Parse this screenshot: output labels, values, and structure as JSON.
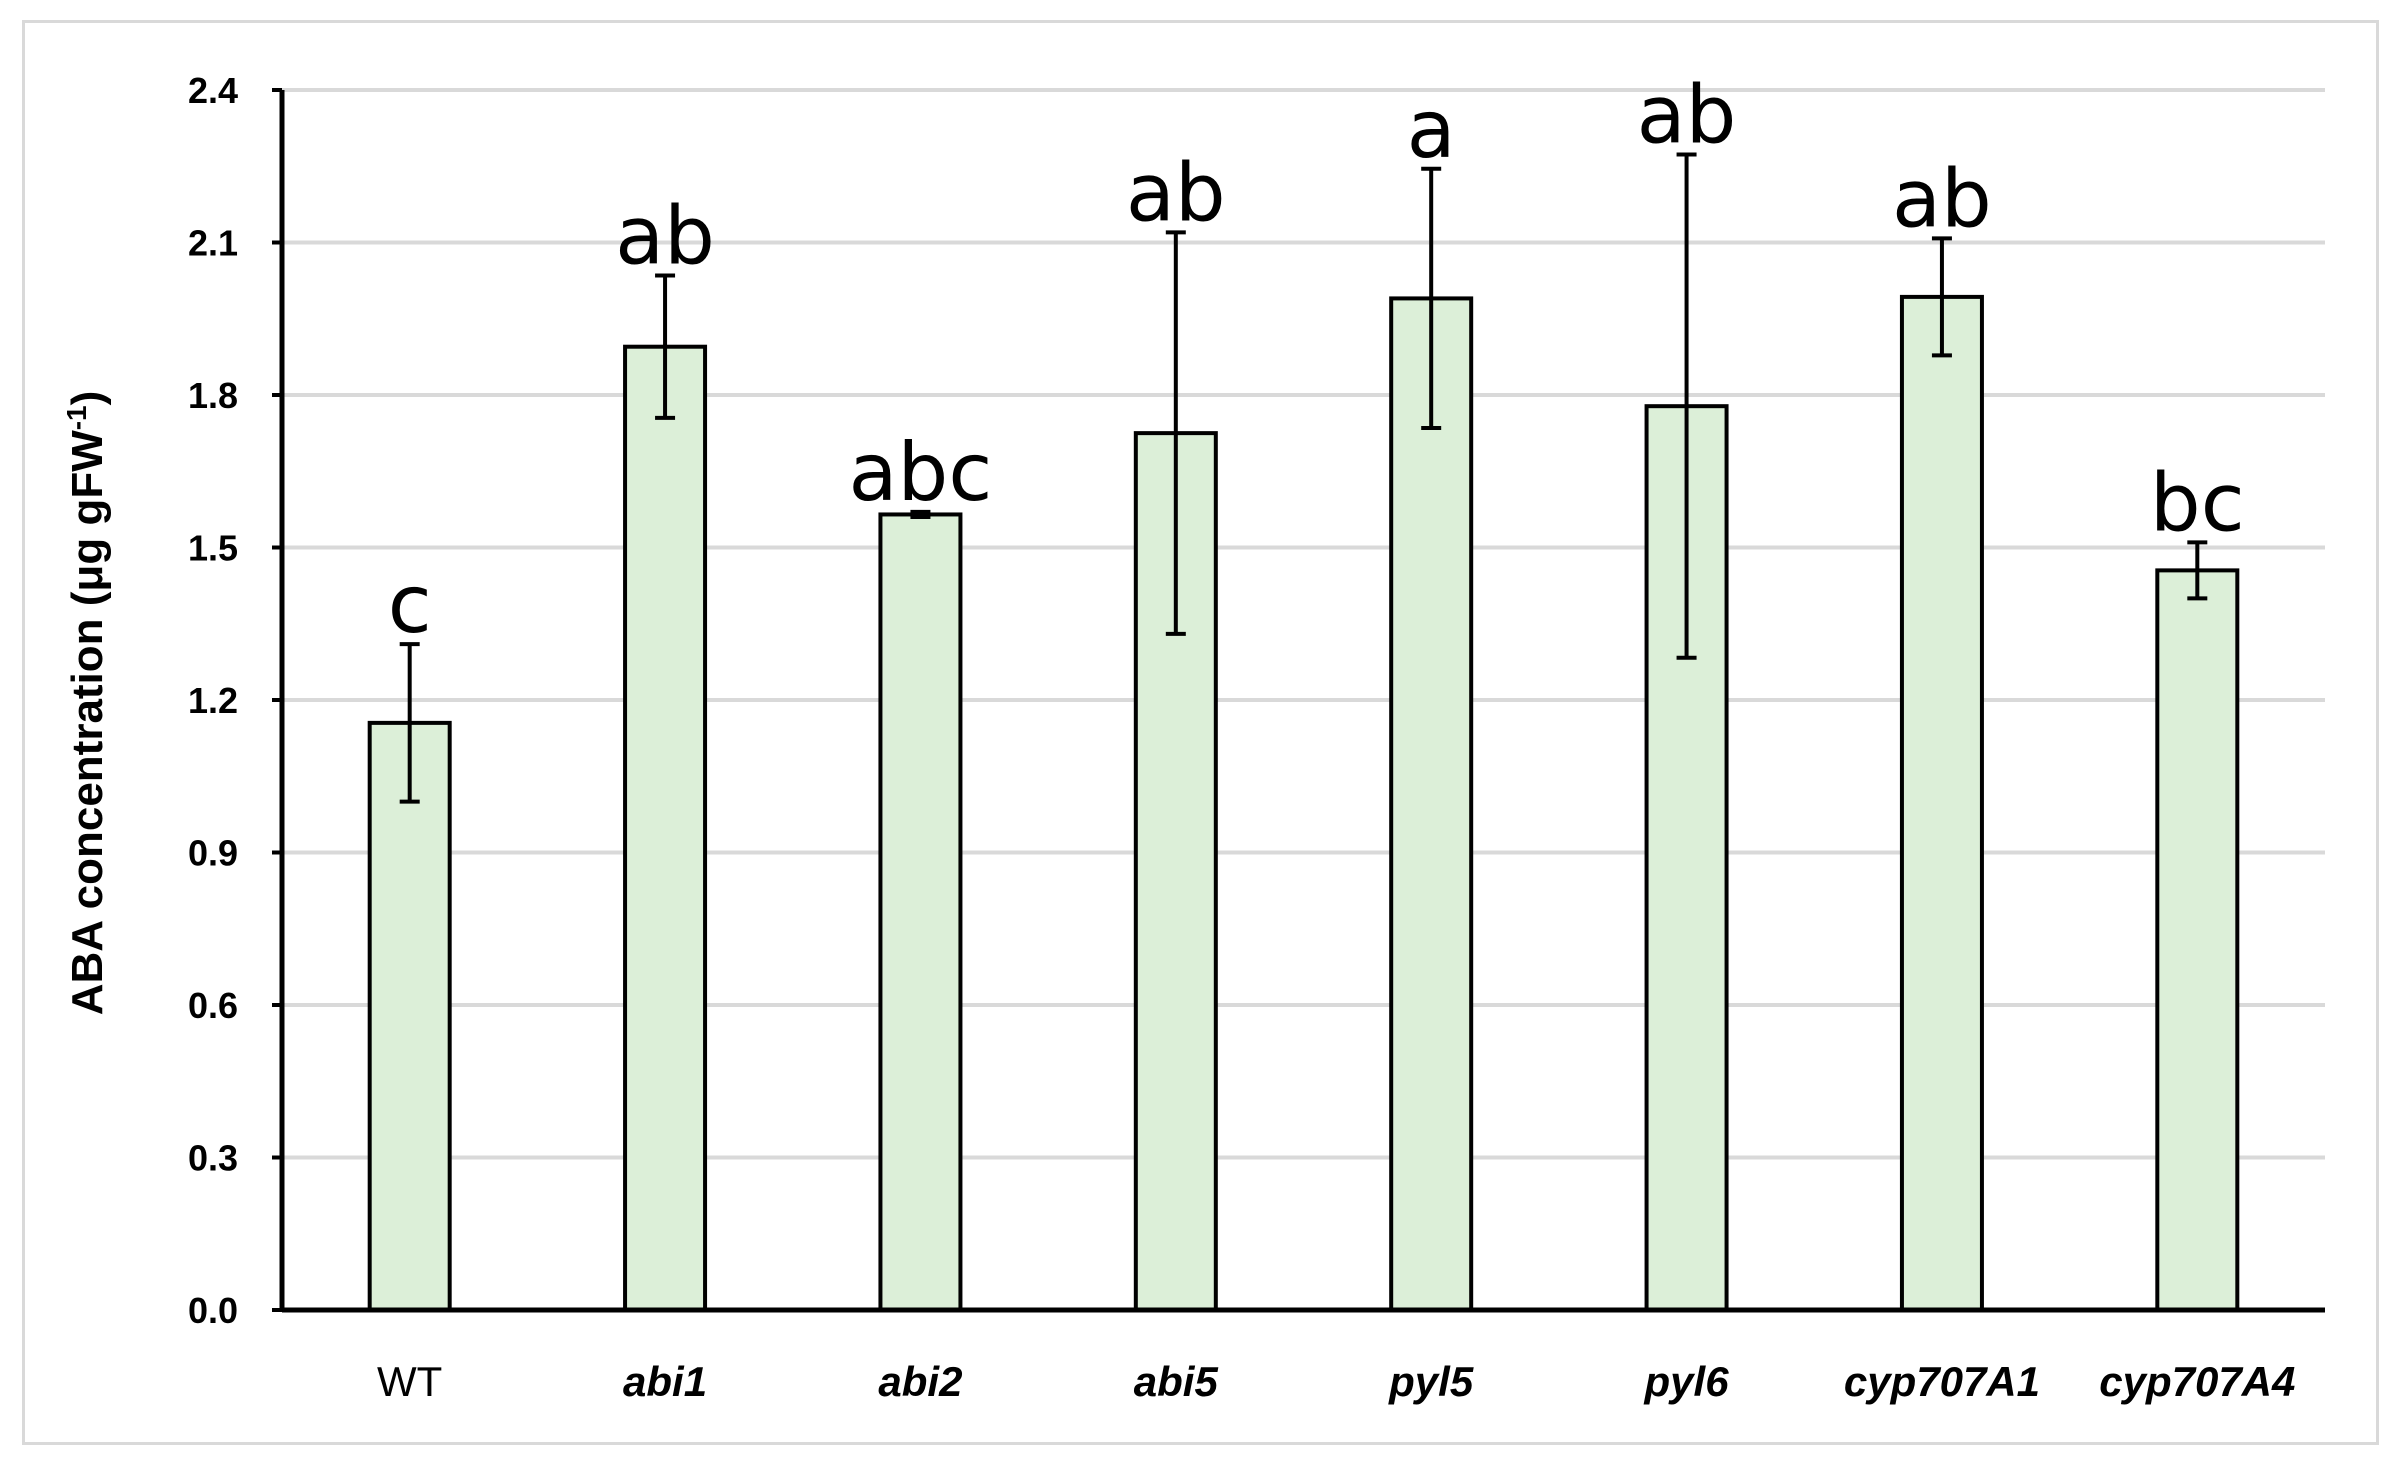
{
  "chart_data": {
    "type": "bar",
    "title": "",
    "xlabel": "",
    "ylabel": "ABA concentration (μg gFW-1)",
    "ylabel_parts": {
      "main": "ABA concentration (μg gFW",
      "superscript": "-1",
      "close": ")"
    },
    "ylim": [
      0,
      2.4
    ],
    "yticks": [
      "0.0",
      "0.3",
      "0.6",
      "0.9",
      "1.2",
      "1.5",
      "1.8",
      "2.1",
      "2.4"
    ],
    "grid": true,
    "categories": [
      "WT",
      "abi1",
      "abi2",
      "abi5",
      "pyl5",
      "pyl6",
      "cyp707A1",
      "cyp707A4"
    ],
    "category_italic": [
      false,
      true,
      true,
      true,
      true,
      true,
      true,
      true
    ],
    "values": [
      1.155,
      1.895,
      1.565,
      1.725,
      1.99,
      1.778,
      1.993,
      1.455
    ],
    "error": [
      0.155,
      0.14,
      0.005,
      0.395,
      0.255,
      0.495,
      0.115,
      0.055
    ],
    "significance_letters": [
      "c",
      "ab",
      "abc",
      "ab",
      "a",
      "ab",
      "ab",
      "bc"
    ],
    "colors": {
      "bar_fill": "#dcefd8",
      "bar_stroke": "#000000",
      "grid": "#d9d9d9",
      "axis": "#000000",
      "frame": "#d9d9d9"
    }
  }
}
